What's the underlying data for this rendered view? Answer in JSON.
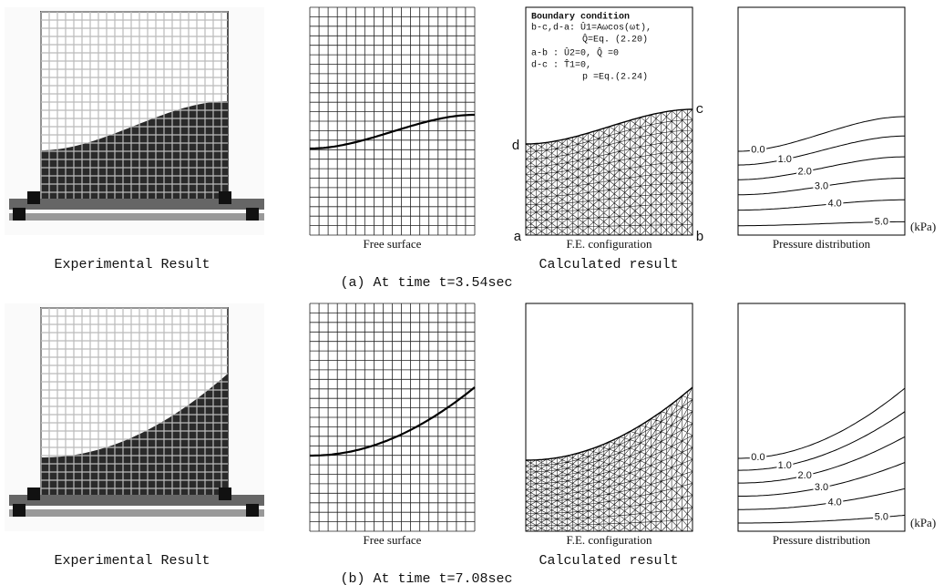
{
  "panels": [
    {
      "experimental_caption": "Experimental Result",
      "free_surface_caption": "Free surface",
      "fe_caption": "F.E. configuration",
      "calculated_caption": "Calculated result",
      "pressure_caption": "Pressure distribution",
      "time_caption": "(a) At time t=3.54sec",
      "contour_labels": [
        "0.0",
        "1.0",
        "2.0",
        "3.0",
        "4.0",
        "5.0"
      ],
      "unit": "(kPa)"
    },
    {
      "experimental_caption": "Experimental Result",
      "free_surface_caption": "Free surface",
      "fe_caption": "F.E. configuration",
      "calculated_caption": "Calculated result",
      "pressure_caption": "Pressure distribution",
      "time_caption": "(b) At time t=7.08sec",
      "contour_labels": [
        "0.0",
        "1.0",
        "2.0",
        "3.0",
        "4.0",
        "5.0"
      ],
      "unit": "(kPa)"
    }
  ],
  "boundary_condition": {
    "title": "Boundary condition",
    "lines": [
      "b-c,d-a: Û1=Aωcos(ωt),",
      "Q̂=Eq. (2.20)",
      "a-b    : Û2=0, Q̂ =0",
      "d-c    : T̂1=0,",
      "p =Eq.(2.24)"
    ]
  },
  "corner_labels": {
    "a": "a",
    "b": "b",
    "c": "c",
    "d": "d"
  }
}
